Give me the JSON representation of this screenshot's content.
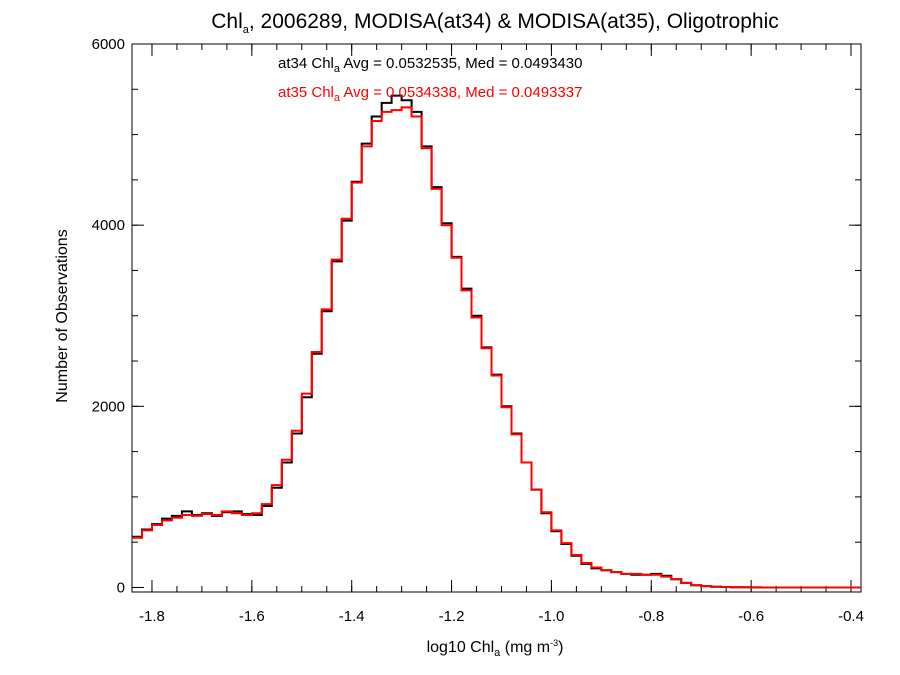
{
  "chart_data": {
    "type": "line",
    "title": {
      "prefix": "Chl",
      "sub": "a",
      "suffix": ", 2006289, MODISA(at34) & MODISA(at35), Oligotrophic"
    },
    "xlabel": {
      "prefix": "log10 Chl",
      "sub": "a",
      "mid": " (mg m",
      "sup": "-3",
      "suffix": ")"
    },
    "ylabel": "Number of Observations",
    "xlim": [
      -1.84,
      -0.38
    ],
    "ylim": [
      -50,
      6000
    ],
    "x_ticks": [
      -1.8,
      -1.6,
      -1.4,
      -1.2,
      -1.0,
      -0.8,
      -0.6,
      -0.4
    ],
    "x_tick_labels": [
      "-1.8",
      "-1.6",
      "-1.4",
      "-1.2",
      "-1.0",
      "-0.8",
      "-0.6",
      "-0.4"
    ],
    "y_ticks": [
      0,
      2000,
      4000,
      6000
    ],
    "y_tick_labels": [
      "0",
      "2000",
      "4000",
      "6000"
    ],
    "x_minor_step": 0.05,
    "y_minor_step": 500,
    "annotations": [
      {
        "series": "at34",
        "prefix": "at34 Chl",
        "sub": "a",
        "suffix": " Avg = 0.0532535, Med = 0.0493430",
        "color": "#000000"
      },
      {
        "series": "at35",
        "prefix": "at35 Chl",
        "sub": "a",
        "suffix": " Avg = 0.0534338, Med = 0.0493337",
        "color": "#ff0000"
      }
    ],
    "series": [
      {
        "name": "at34",
        "color": "#000000",
        "step": "histogram",
        "x": [
          -1.84,
          -1.82,
          -1.8,
          -1.78,
          -1.76,
          -1.74,
          -1.72,
          -1.7,
          -1.68,
          -1.66,
          -1.64,
          -1.62,
          -1.6,
          -1.58,
          -1.56,
          -1.54,
          -1.52,
          -1.5,
          -1.48,
          -1.46,
          -1.44,
          -1.42,
          -1.4,
          -1.38,
          -1.36,
          -1.34,
          -1.32,
          -1.3,
          -1.28,
          -1.26,
          -1.24,
          -1.22,
          -1.2,
          -1.18,
          -1.16,
          -1.14,
          -1.12,
          -1.1,
          -1.08,
          -1.06,
          -1.04,
          -1.02,
          -1.0,
          -0.98,
          -0.96,
          -0.94,
          -0.92,
          -0.9,
          -0.88,
          -0.86,
          -0.84,
          -0.82,
          -0.8,
          -0.78,
          -0.76,
          -0.74,
          -0.72,
          -0.7,
          -0.68,
          -0.66,
          -0.64,
          -0.62,
          -0.6,
          -0.58,
          -0.56,
          -0.54,
          -0.52,
          -0.5,
          -0.48,
          -0.46,
          -0.44,
          -0.42,
          -0.4,
          -0.38
        ],
        "y": [
          560,
          640,
          700,
          760,
          790,
          840,
          800,
          820,
          790,
          830,
          840,
          810,
          800,
          900,
          1100,
          1380,
          1700,
          2100,
          2580,
          3050,
          3600,
          4050,
          4480,
          4900,
          5200,
          5350,
          5430,
          5380,
          5250,
          4870,
          4420,
          4020,
          3650,
          3300,
          3000,
          2650,
          2350,
          2000,
          1700,
          1380,
          1080,
          820,
          620,
          480,
          350,
          260,
          210,
          190,
          170,
          150,
          140,
          140,
          150,
          130,
          90,
          50,
          25,
          15,
          8,
          5,
          3,
          2,
          1,
          0,
          0,
          0,
          0,
          0,
          0,
          0,
          0,
          0,
          0,
          0
        ]
      },
      {
        "name": "at35",
        "color": "#ff0000",
        "step": "histogram",
        "x": [
          -1.84,
          -1.82,
          -1.8,
          -1.78,
          -1.76,
          -1.74,
          -1.72,
          -1.7,
          -1.68,
          -1.66,
          -1.64,
          -1.62,
          -1.6,
          -1.58,
          -1.56,
          -1.54,
          -1.52,
          -1.5,
          -1.48,
          -1.46,
          -1.44,
          -1.42,
          -1.4,
          -1.38,
          -1.36,
          -1.34,
          -1.32,
          -1.3,
          -1.28,
          -1.26,
          -1.24,
          -1.22,
          -1.2,
          -1.18,
          -1.16,
          -1.14,
          -1.12,
          -1.1,
          -1.08,
          -1.06,
          -1.04,
          -1.02,
          -1.0,
          -0.98,
          -0.96,
          -0.94,
          -0.92,
          -0.9,
          -0.88,
          -0.86,
          -0.84,
          -0.82,
          -0.8,
          -0.78,
          -0.76,
          -0.74,
          -0.72,
          -0.7,
          -0.68,
          -0.66,
          -0.64,
          -0.62,
          -0.6,
          -0.58,
          -0.56,
          -0.54,
          -0.52,
          -0.5,
          -0.48,
          -0.46,
          -0.44,
          -0.42,
          -0.4,
          -0.38
        ],
        "y": [
          550,
          630,
          690,
          740,
          770,
          800,
          790,
          810,
          800,
          840,
          820,
          800,
          820,
          920,
          1130,
          1410,
          1730,
          2140,
          2600,
          3070,
          3620,
          4070,
          4470,
          4870,
          5150,
          5250,
          5270,
          5300,
          5200,
          4850,
          4400,
          4000,
          3640,
          3280,
          2980,
          2640,
          2340,
          1990,
          1690,
          1380,
          1080,
          830,
          630,
          490,
          360,
          270,
          220,
          190,
          170,
          150,
          150,
          140,
          140,
          120,
          90,
          50,
          25,
          15,
          8,
          5,
          3,
          2,
          1,
          0,
          0,
          0,
          0,
          0,
          0,
          0,
          0,
          0,
          0,
          0
        ]
      }
    ]
  }
}
